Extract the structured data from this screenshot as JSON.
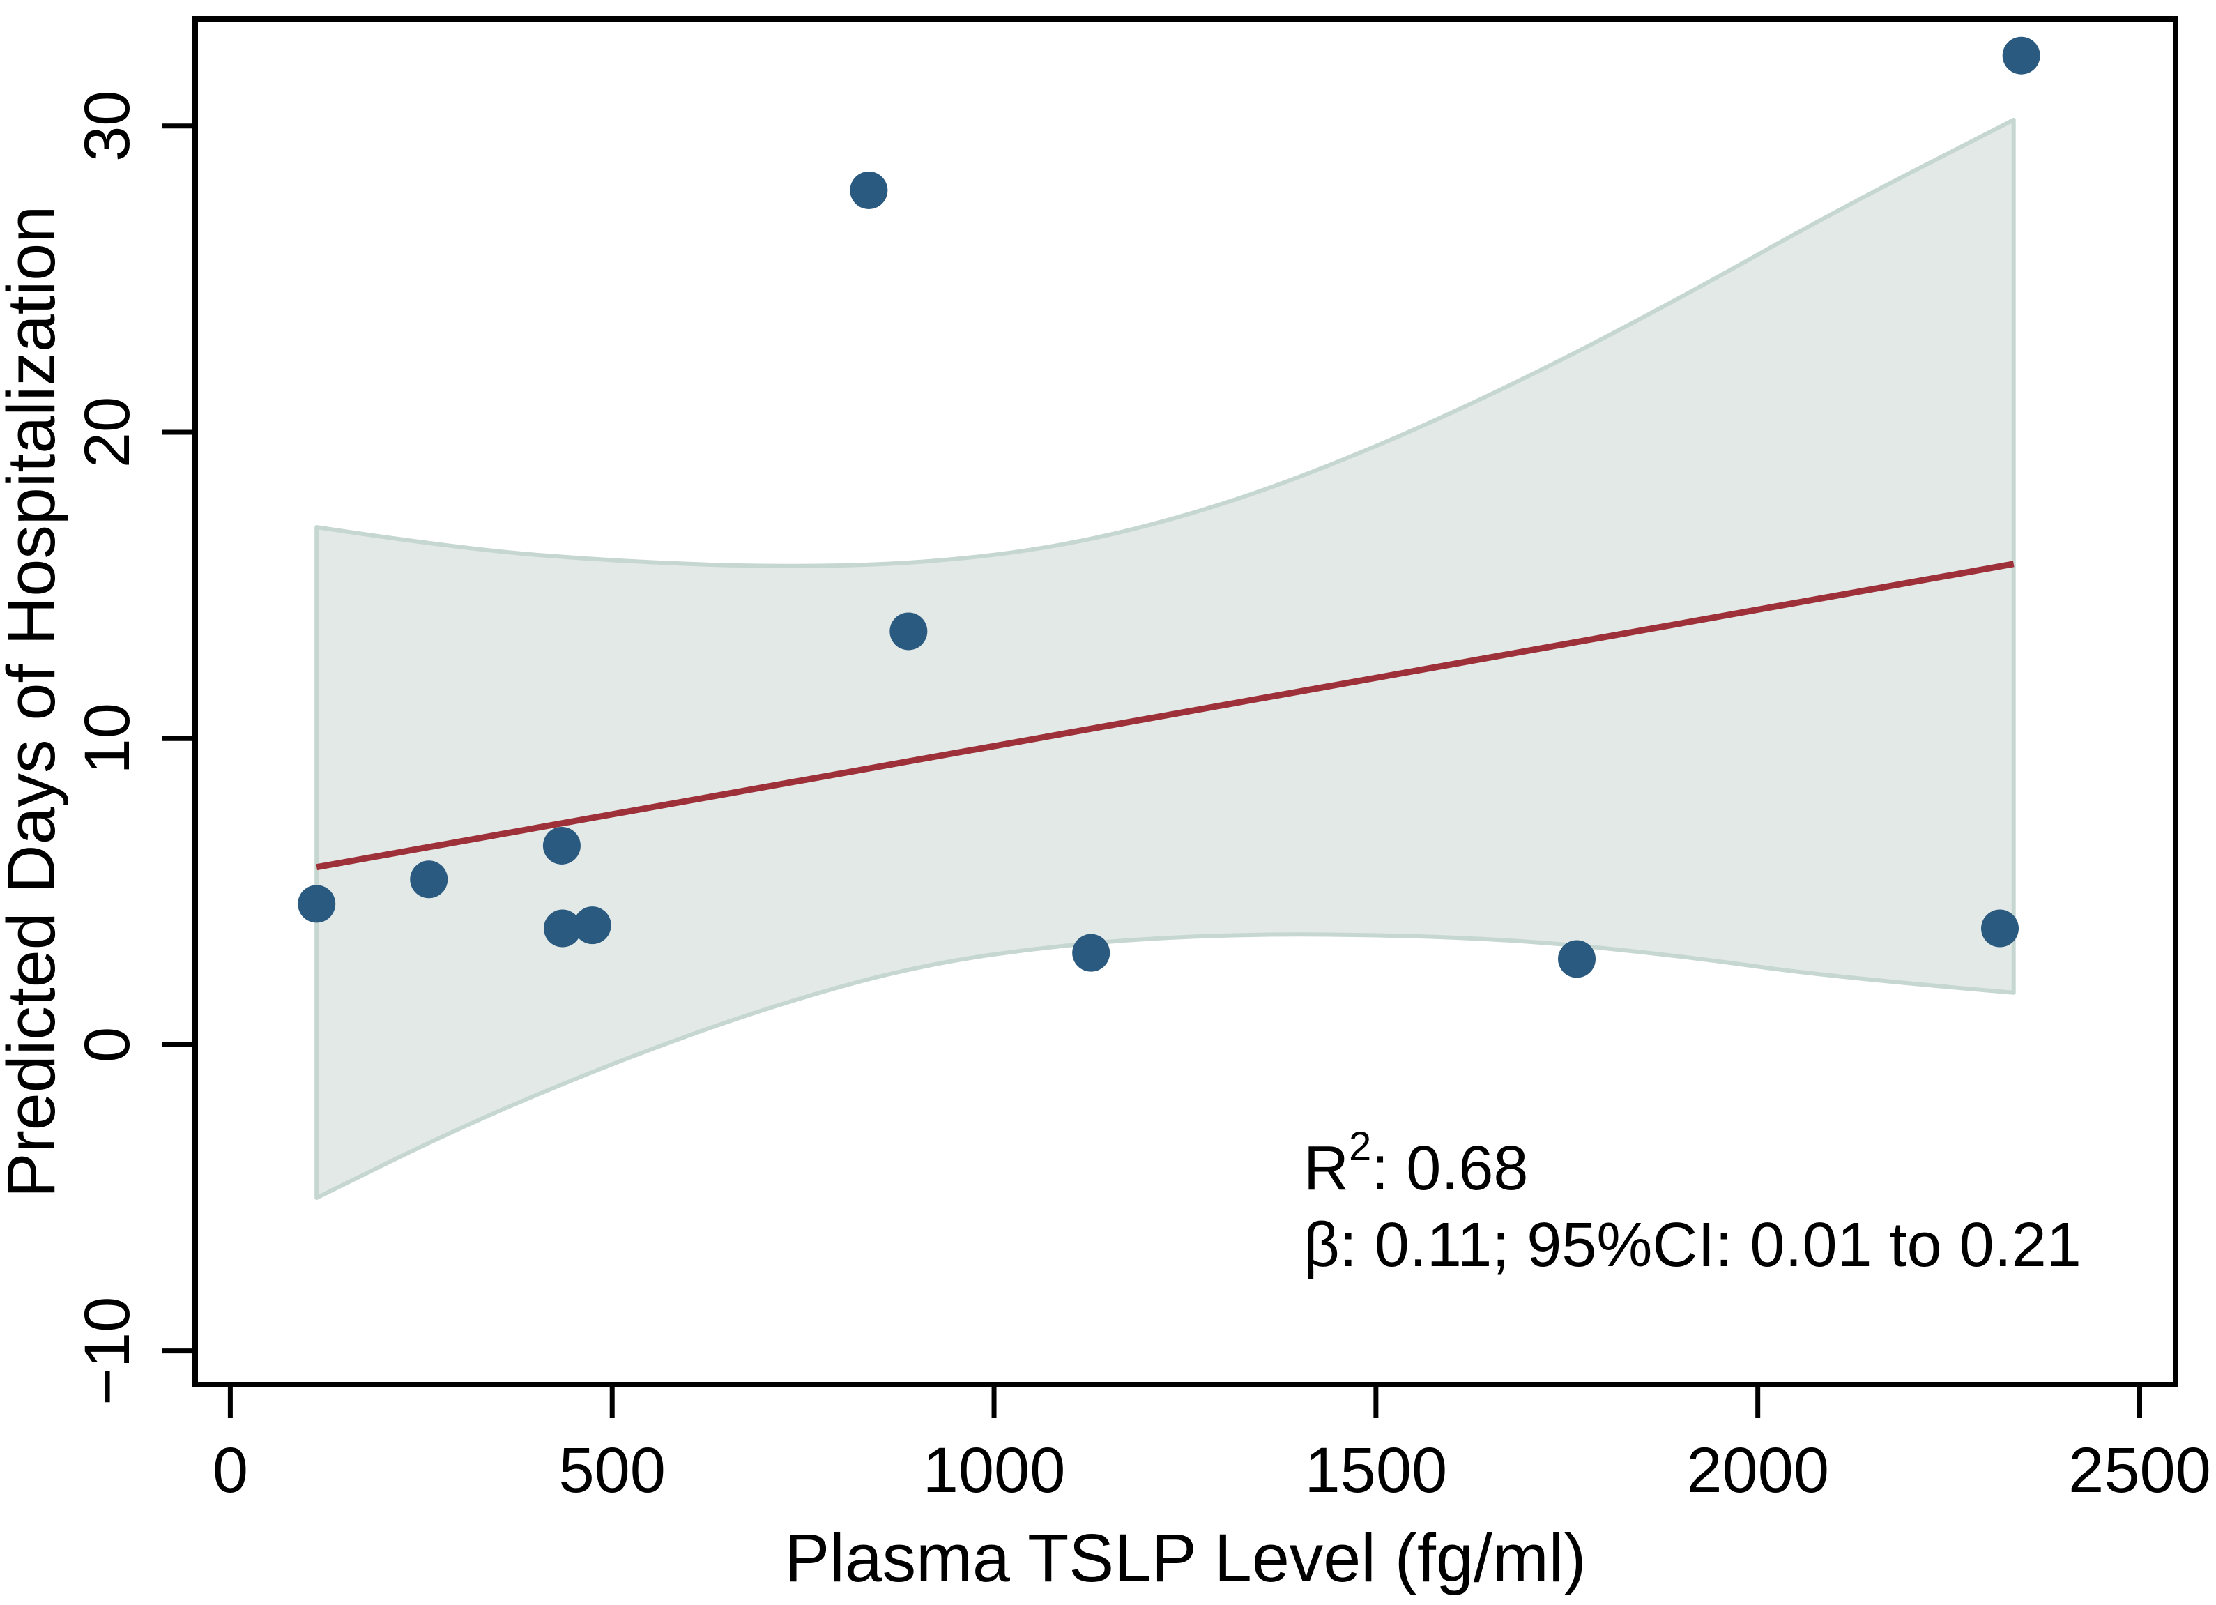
{
  "figure": {
    "background": "#ffffff",
    "x_axis": {
      "title": "Plasma TSLP Level (fg/ml)",
      "tick_labels": [
        "0",
        "500",
        "1000",
        "1500",
        "2000",
        "2500"
      ]
    },
    "y_axis": {
      "title": "Predicted Days of Hospitalization",
      "tick_labels": [
        "−10",
        "0",
        "10",
        "20",
        "30"
      ]
    },
    "annotation": {
      "line1_base": "R",
      "line1_sup": "2",
      "line1_rest": ": 0.68",
      "line2": "β: 0.11; 95%CI: 0.01 to 0.21"
    },
    "colors": {
      "point": "#2a5a80",
      "regression_line": "#9e3039",
      "band_fill": "#e2e9e7",
      "band_border": "#c6d7d2",
      "axis": "#000000",
      "text": "#000000"
    }
  },
  "chart_data": {
    "type": "scatter",
    "title": "",
    "xlabel": "Plasma TSLP Level (fg/ml)",
    "ylabel": "Predicted Days of Hospitalization",
    "xlim": [
      -46,
      2547
    ],
    "ylim": [
      -11.1,
      33.5
    ],
    "x_ticks": [
      0,
      500,
      1000,
      1500,
      2000,
      2500
    ],
    "y_ticks": [
      -10,
      0,
      10,
      20,
      30
    ],
    "grid": false,
    "legend_position": "none",
    "points": [
      {
        "x": 113,
        "y": 4.6
      },
      {
        "x": 260,
        "y": 5.4
      },
      {
        "x": 434,
        "y": 6.5
      },
      {
        "x": 435,
        "y": 3.8
      },
      {
        "x": 474,
        "y": 3.9
      },
      {
        "x": 836,
        "y": 27.9
      },
      {
        "x": 888,
        "y": 13.5
      },
      {
        "x": 1127,
        "y": 3.0
      },
      {
        "x": 1763,
        "y": 2.8
      },
      {
        "x": 2317,
        "y": 3.8
      },
      {
        "x": 2345,
        "y": 32.3
      }
    ],
    "regression_line": {
      "x1": 113,
      "y1": 5.8,
      "x2": 2335,
      "y2": 15.7
    },
    "ci_band": {
      "x": [
        113,
        300,
        500,
        700,
        900,
        1100,
        1300,
        1500,
        1700,
        1900,
        2100,
        2335
      ],
      "upper": [
        16.9,
        16.2,
        15.8,
        15.6,
        15.7,
        16.3,
        17.6,
        19.5,
        21.8,
        24.4,
        27.2,
        30.2
      ],
      "lower": [
        -5.0,
        -2.7,
        -0.6,
        1.2,
        2.6,
        3.3,
        3.6,
        3.6,
        3.4,
        2.9,
        2.2,
        1.7
      ]
    },
    "stats": {
      "r_squared": "0.68",
      "beta": "0.11",
      "ci_95": "0.01 to 0.21"
    }
  }
}
